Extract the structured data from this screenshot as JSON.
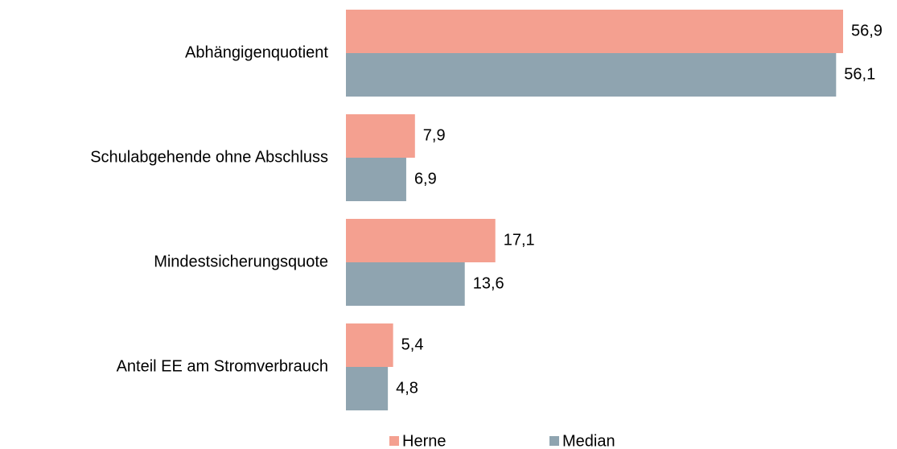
{
  "chart_data": {
    "type": "bar",
    "orientation": "horizontal",
    "categories": [
      "Abhängigenquotient",
      "Schulabgehende ohne Abschluss",
      "Mindestsicherungsquote",
      "Anteil EE am Stromverbrauch"
    ],
    "series": [
      {
        "name": "Herne",
        "color": "#f4a090",
        "values": [
          56.9,
          7.9,
          17.1,
          5.4
        ],
        "value_labels": [
          "56,9",
          "7,9",
          "17,1",
          "5,4"
        ]
      },
      {
        "name": "Median",
        "color": "#8fa4b0",
        "values": [
          56.1,
          6.9,
          13.6,
          4.8
        ],
        "value_labels": [
          "56,1",
          "6,9",
          "13,6",
          "4,8"
        ]
      }
    ],
    "legend": "bottom"
  }
}
